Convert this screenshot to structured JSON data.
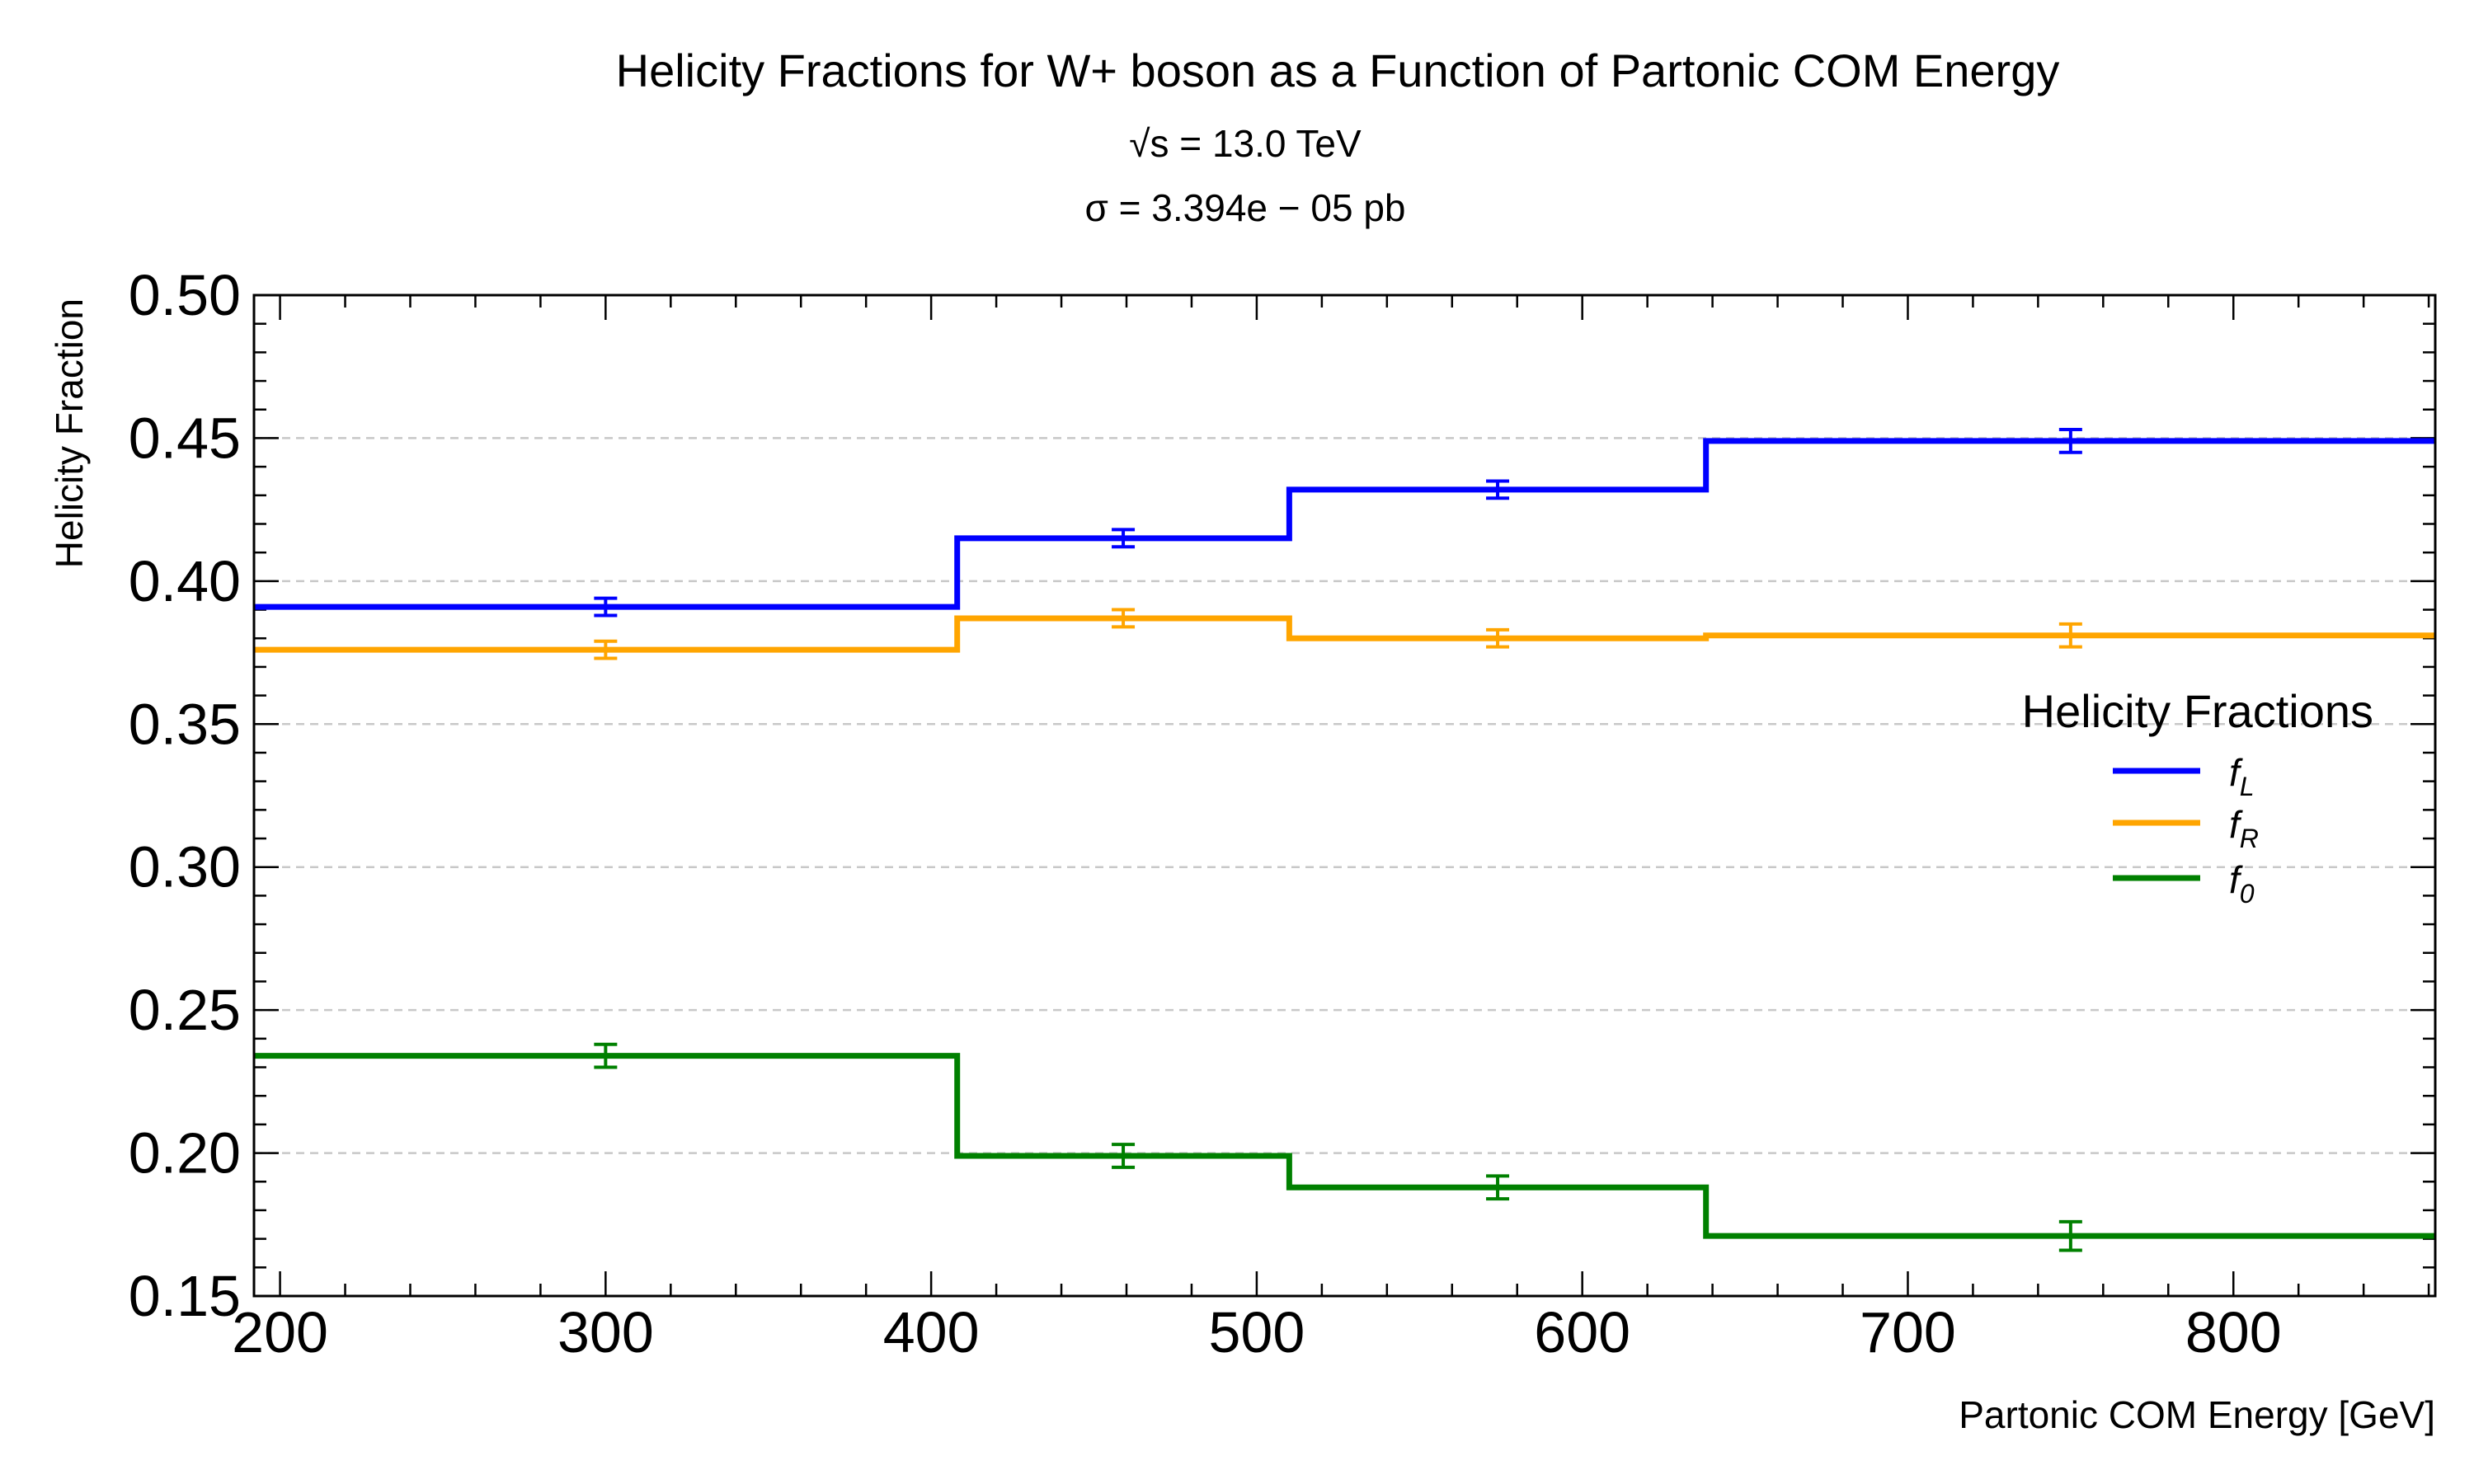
{
  "chart_data": {
    "type": "line",
    "step": true,
    "title": "Helicity Fractions for W+ boson as a Function of Partonic COM Energy",
    "subtitle_lines": [
      "√s = 13.0 TeV",
      "σ = 3.394e − 05 pb"
    ],
    "xlabel": "Partonic COM Energy [GeV]",
    "ylabel": "Helicity Fraction",
    "xlim": [
      192,
      862
    ],
    "ylim": [
      0.15,
      0.5
    ],
    "xticks": [
      "200",
      "300",
      "400",
      "500",
      "600",
      "700",
      "800"
    ],
    "xtick_values": [
      200,
      300,
      400,
      500,
      600,
      700,
      800
    ],
    "yticks": [
      "0.15",
      "0.20",
      "0.25",
      "0.30",
      "0.35",
      "0.40",
      "0.45",
      "0.50"
    ],
    "ytick_values": [
      0.15,
      0.2,
      0.25,
      0.3,
      0.35,
      0.4,
      0.45,
      0.5
    ],
    "bin_edges": [
      192,
      408,
      510,
      638,
      862
    ],
    "bin_centers": [
      300,
      459,
      574,
      750
    ],
    "grid": "horizontal dashed",
    "legend_title": "Helicity Fractions",
    "legend_position": "right",
    "series": [
      {
        "name": "f_L",
        "label_main": "f",
        "label_sub": "L",
        "color": "#0000ff",
        "values": [
          0.391,
          0.415,
          0.432,
          0.449
        ],
        "errors": [
          0.003,
          0.003,
          0.003,
          0.004
        ]
      },
      {
        "name": "f_R",
        "label_main": "f",
        "label_sub": "R",
        "color": "#ffa500",
        "values": [
          0.376,
          0.387,
          0.38,
          0.381
        ],
        "errors": [
          0.003,
          0.003,
          0.003,
          0.004
        ]
      },
      {
        "name": "f_0",
        "label_main": "f",
        "label_sub": "0",
        "color": "#008000",
        "values": [
          0.234,
          0.199,
          0.188,
          0.171
        ],
        "errors": [
          0.004,
          0.004,
          0.004,
          0.005
        ]
      }
    ]
  }
}
